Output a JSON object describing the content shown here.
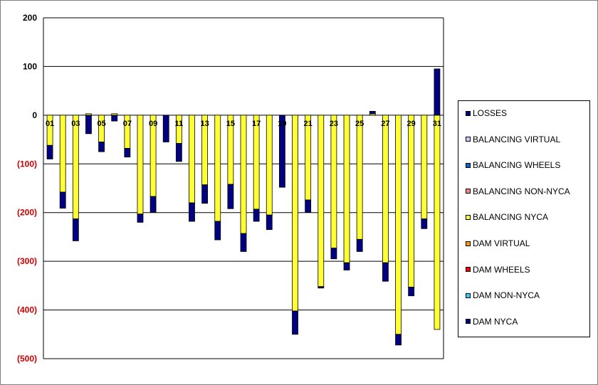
{
  "chart_data": {
    "type": "bar",
    "stacked": true,
    "title": "",
    "xlabel": "",
    "ylabel": "",
    "ylim": [
      -500,
      200
    ],
    "yticks": [
      200,
      100,
      0,
      -100,
      -200,
      -300,
      -400,
      -500
    ],
    "ytick_labels": [
      "200",
      "100",
      "0",
      "(100)",
      "(200)",
      "(300)",
      "(400)",
      "(500)"
    ],
    "negative_tick_color": "#cc0000",
    "positive_tick_color": "#000000",
    "grid": true,
    "legend_position": "right",
    "categories": [
      "01",
      "02",
      "03",
      "04",
      "05",
      "06",
      "07",
      "08",
      "09",
      "10",
      "11",
      "12",
      "13",
      "14",
      "15",
      "16",
      "17",
      "18",
      "19",
      "20",
      "21",
      "22",
      "23",
      "24",
      "25",
      "26",
      "27",
      "28",
      "29",
      "30",
      "31"
    ],
    "shown_category_labels": [
      "01",
      "03",
      "05",
      "07",
      "09",
      "11",
      "13",
      "15",
      "17",
      "19",
      "21",
      "23",
      "25",
      "27",
      "29",
      "31"
    ],
    "series": [
      {
        "name": "LOSSES",
        "color": "#000080",
        "values": [
          0,
          0,
          0,
          0,
          0,
          0,
          0,
          0,
          0,
          0,
          0,
          0,
          0,
          0,
          0,
          0,
          0,
          0,
          0,
          0,
          0,
          0,
          0,
          0,
          0,
          0,
          0,
          0,
          0,
          0,
          0
        ]
      },
      {
        "name": "BALANCING VIRTUAL",
        "color": "#ccccff",
        "values": [
          0,
          0,
          0,
          0,
          0,
          0,
          0,
          0,
          0,
          0,
          0,
          0,
          0,
          0,
          0,
          0,
          0,
          0,
          0,
          0,
          0,
          0,
          0,
          0,
          0,
          0,
          0,
          0,
          0,
          0,
          0
        ]
      },
      {
        "name": "BALANCING WHEELS",
        "color": "#0066cc",
        "values": [
          0,
          0,
          0,
          0,
          0,
          0,
          0,
          0,
          0,
          0,
          0,
          0,
          0,
          0,
          0,
          0,
          0,
          0,
          0,
          0,
          0,
          0,
          0,
          0,
          0,
          0,
          0,
          0,
          0,
          0,
          0
        ]
      },
      {
        "name": "BALANCING NON-NYCA",
        "color": "#ff8080",
        "values": [
          0,
          0,
          0,
          0,
          0,
          0,
          0,
          0,
          0,
          0,
          0,
          0,
          0,
          0,
          0,
          0,
          0,
          0,
          0,
          0,
          0,
          0,
          0,
          0,
          0,
          0,
          0,
          0,
          0,
          0,
          0
        ]
      },
      {
        "name": "BALANCING NYCA",
        "color": "#ffff33",
        "values": [
          -62,
          -158,
          -213,
          3,
          -55,
          3,
          -68,
          -203,
          -167,
          0,
          -58,
          -180,
          -143,
          -218,
          -142,
          -243,
          -193,
          -205,
          0,
          -402,
          -174,
          -352,
          -273,
          -303,
          -255,
          3,
          -303,
          -450,
          -353,
          -213,
          -440
        ]
      },
      {
        "name": "DAM VIRTUAL",
        "color": "#ff9900",
        "values": [
          0,
          0,
          0,
          0,
          0,
          0,
          0,
          0,
          0,
          0,
          0,
          0,
          0,
          0,
          0,
          0,
          0,
          0,
          0,
          0,
          0,
          0,
          0,
          0,
          0,
          0,
          0,
          0,
          0,
          0,
          0
        ]
      },
      {
        "name": "DAM WHEELS",
        "color": "#ff0000",
        "values": [
          0,
          0,
          0,
          0,
          0,
          0,
          0,
          0,
          0,
          0,
          0,
          0,
          0,
          0,
          0,
          0,
          0,
          0,
          0,
          0,
          0,
          0,
          0,
          0,
          0,
          0,
          0,
          0,
          0,
          0,
          0
        ]
      },
      {
        "name": "DAM NON-NYCA",
        "color": "#33ccff",
        "values": [
          0,
          0,
          0,
          0,
          0,
          0,
          0,
          0,
          0,
          0,
          0,
          0,
          0,
          0,
          0,
          0,
          0,
          0,
          0,
          0,
          0,
          0,
          0,
          0,
          0,
          0,
          0,
          0,
          0,
          0,
          0
        ]
      },
      {
        "name": "DAM NYCA",
        "color": "#000080",
        "values": [
          -28,
          -33,
          -45,
          -38,
          -20,
          -12,
          -18,
          -17,
          -32,
          -55,
          -37,
          -38,
          -38,
          -38,
          -50,
          -37,
          -25,
          -30,
          -148,
          -48,
          -25,
          -3,
          -22,
          -15,
          -25,
          5,
          -38,
          -22,
          -18,
          -20,
          95
        ]
      }
    ]
  }
}
